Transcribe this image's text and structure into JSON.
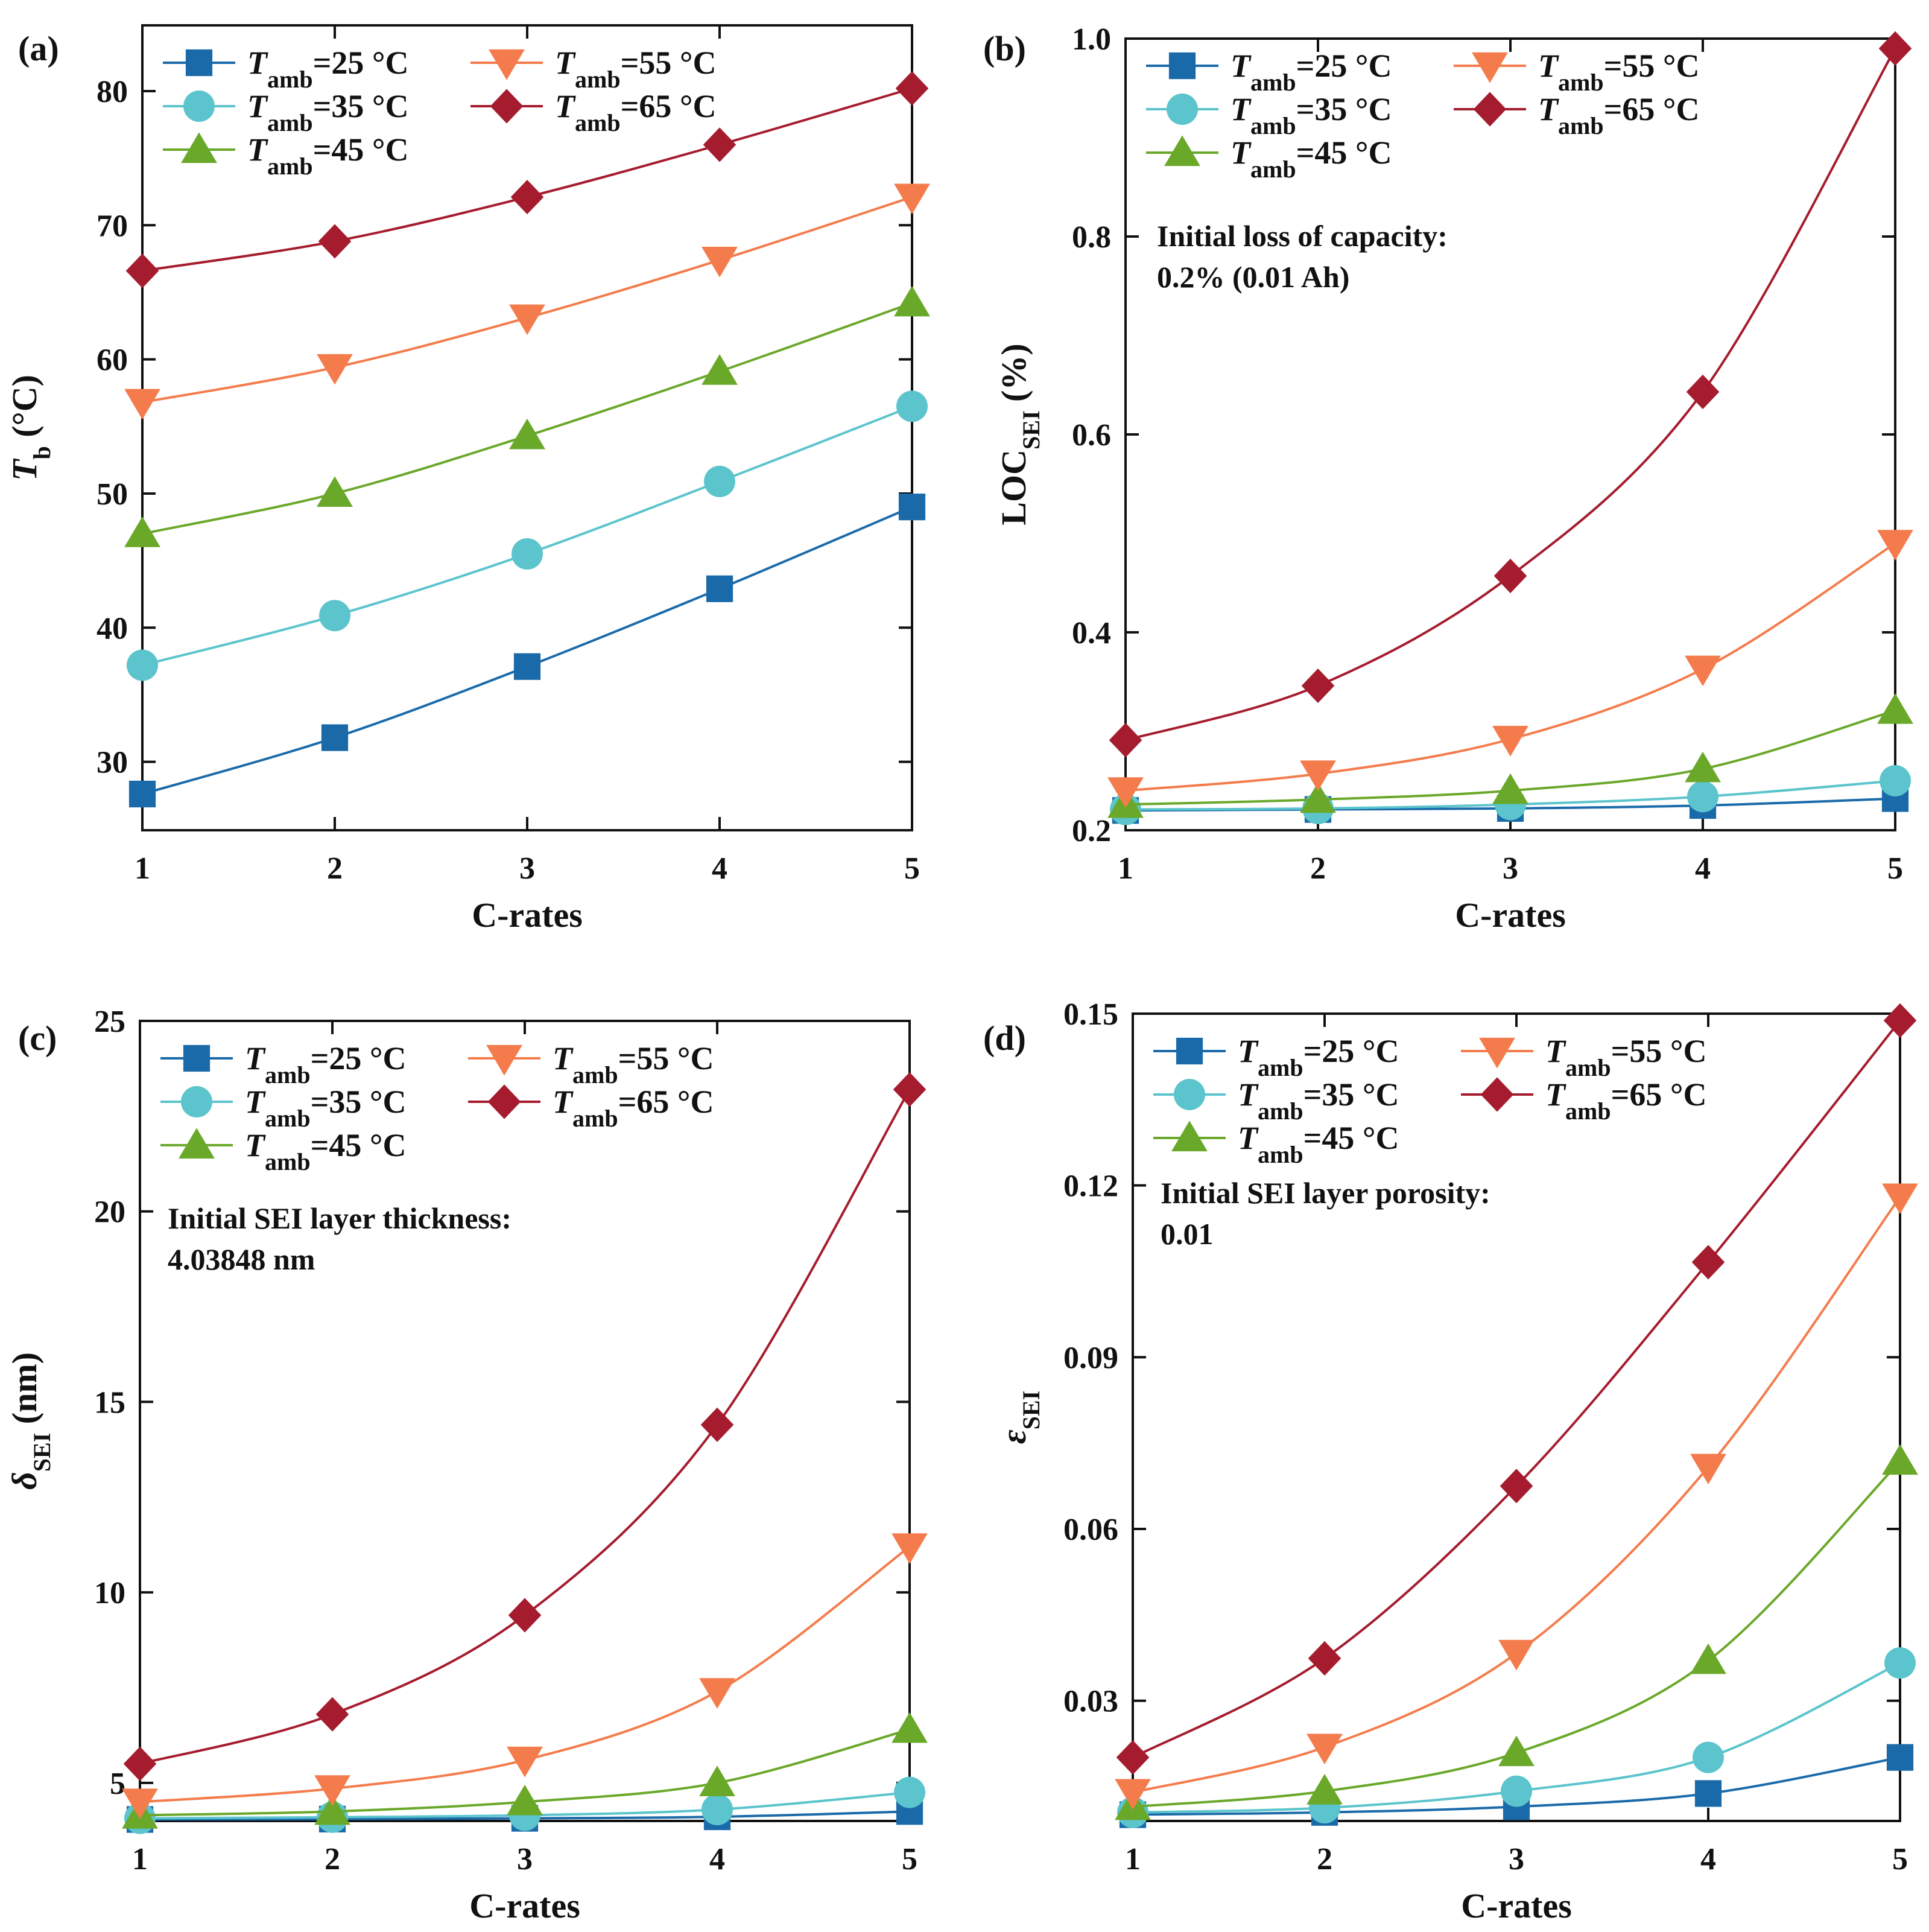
{
  "colors": {
    "25": "#1a6aaa",
    "35": "#5bc4cc",
    "45": "#6aa82a",
    "55": "#f47c4c",
    "65": "#a51c2e"
  },
  "legend": {
    "prefix": "T",
    "subscript": "amb",
    "entries": [
      {
        "key": "25",
        "suffix": "=25 °C",
        "marker": "square"
      },
      {
        "key": "55",
        "suffix": "=55 °C",
        "marker": "triangle-down"
      },
      {
        "key": "35",
        "suffix": "=35 °C",
        "marker": "circle"
      },
      {
        "key": "65",
        "suffix": "=65 °C",
        "marker": "diamond"
      },
      {
        "key": "45",
        "suffix": "=45 °C",
        "marker": "triangle-up"
      }
    ]
  },
  "chart_data": [
    {
      "panel": "(a)",
      "type": "line",
      "xlabel": "C-rates",
      "ylabel": {
        "main": "T",
        "sub": "b",
        "rest": " (°C)"
      },
      "x": [
        1,
        2,
        3,
        4,
        5
      ],
      "xlim": [
        1,
        5
      ],
      "ylim": [
        24.9,
        84.9
      ],
      "yticks": [
        30,
        40,
        50,
        60,
        70,
        80
      ],
      "ytick_labels": [
        "30",
        "40",
        "50",
        "60",
        "70",
        "80"
      ],
      "note": [],
      "series": [
        {
          "name": "Tamb=25 °C",
          "key": "25",
          "values": [
            27.6,
            31.8,
            37.1,
            42.9,
            49.0
          ]
        },
        {
          "name": "Tamb=35 °C",
          "key": "35",
          "values": [
            37.2,
            40.9,
            45.5,
            50.9,
            56.5
          ]
        },
        {
          "name": "Tamb=45 °C",
          "key": "45",
          "values": [
            47.0,
            50.0,
            54.3,
            59.1,
            64.2
          ]
        },
        {
          "name": "Tamb=55 °C",
          "key": "55",
          "values": [
            56.8,
            59.4,
            63.1,
            67.4,
            72.1
          ]
        },
        {
          "name": "Tamb=65 °C",
          "key": "65",
          "values": [
            66.6,
            68.8,
            72.1,
            76.0,
            80.2
          ]
        }
      ]
    },
    {
      "panel": "(b)",
      "type": "line",
      "xlabel": "C-rates",
      "ylabel": {
        "main": "LOC",
        "sub": "SEI",
        "rest": " (%)"
      },
      "x": [
        1,
        2,
        3,
        4,
        5
      ],
      "xlim": [
        1,
        5
      ],
      "ylim": [
        0.2,
        1.0
      ],
      "yticks": [
        0.2,
        0.4,
        0.6,
        0.8,
        1.0
      ],
      "ytick_labels": [
        "0.2",
        "0.4",
        "0.6",
        "0.8",
        "1.0"
      ],
      "note": [
        "Initial loss of capacity:",
        "0.2% (0.01 Ah)"
      ],
      "series": [
        {
          "name": "Tamb=25 °C",
          "key": "25",
          "values": [
            0.22,
            0.221,
            0.222,
            0.225,
            0.232
          ]
        },
        {
          "name": "Tamb=35 °C",
          "key": "35",
          "values": [
            0.221,
            0.222,
            0.226,
            0.234,
            0.25
          ]
        },
        {
          "name": "Tamb=45 °C",
          "key": "45",
          "values": [
            0.226,
            0.231,
            0.24,
            0.262,
            0.321
          ]
        },
        {
          "name": "Tamb=55 °C",
          "key": "55",
          "values": [
            0.24,
            0.257,
            0.292,
            0.363,
            0.49
          ]
        },
        {
          "name": "Tamb=65 °C",
          "key": "65",
          "values": [
            0.291,
            0.346,
            0.457,
            0.643,
            0.99
          ]
        }
      ]
    },
    {
      "panel": "(c)",
      "type": "line",
      "xlabel": "C-rates",
      "ylabel": {
        "main": "δ",
        "sub": "SEI",
        "rest": " (nm)"
      },
      "x": [
        1,
        2,
        3,
        4,
        5
      ],
      "xlim": [
        1,
        5
      ],
      "ylim": [
        4.0,
        25.0
      ],
      "yticks": [
        5,
        10,
        15,
        20,
        25
      ],
      "ytick_labels": [
        "5",
        "10",
        "15",
        "20",
        "25"
      ],
      "note": [
        "Initial SEI layer thickness:",
        "4.03848 nm"
      ],
      "series": [
        {
          "name": "Tamb=25 °C",
          "key": "25",
          "values": [
            4.04,
            4.05,
            4.07,
            4.11,
            4.25
          ]
        },
        {
          "name": "Tamb=35 °C",
          "key": "35",
          "values": [
            4.07,
            4.1,
            4.15,
            4.3,
            4.75
          ]
        },
        {
          "name": "Tamb=45 °C",
          "key": "45",
          "values": [
            4.15,
            4.25,
            4.5,
            5.0,
            6.4
          ]
        },
        {
          "name": "Tamb=55 °C",
          "key": "55",
          "values": [
            4.5,
            4.85,
            5.6,
            7.4,
            11.2
          ]
        },
        {
          "name": "Tamb=65 °C",
          "key": "65",
          "values": [
            5.5,
            6.8,
            9.4,
            14.4,
            23.2
          ]
        }
      ]
    },
    {
      "panel": "(d)",
      "type": "line",
      "xlabel": "C-rates",
      "ylabel": {
        "main": "ε",
        "sub": "SEI",
        "rest": ""
      },
      "x": [
        1,
        2,
        3,
        4,
        5
      ],
      "xlim": [
        1,
        5
      ],
      "ylim": [
        0.009,
        0.15
      ],
      "yticks": [
        0.03,
        0.06,
        0.09,
        0.12,
        0.15
      ],
      "ytick_labels": [
        "0.03",
        "0.06",
        "0.09",
        "0.12",
        "0.15"
      ],
      "note": [
        "Initial SEI layer porosity:",
        "0.01"
      ],
      "series": [
        {
          "name": "Tamb=25 °C",
          "key": "25",
          "values": [
            0.0101,
            0.0105,
            0.0115,
            0.0138,
            0.0201
          ]
        },
        {
          "name": "Tamb=35 °C",
          "key": "35",
          "values": [
            0.0105,
            0.0113,
            0.0142,
            0.0201,
            0.0366
          ]
        },
        {
          "name": "Tamb=45 °C",
          "key": "45",
          "values": [
            0.0115,
            0.0142,
            0.0209,
            0.037,
            0.0718
          ]
        },
        {
          "name": "Tamb=55 °C",
          "key": "55",
          "values": [
            0.014,
            0.0219,
            0.0383,
            0.0708,
            0.118
          ]
        },
        {
          "name": "Tamb=65 °C",
          "key": "65",
          "values": [
            0.0201,
            0.0374,
            0.0675,
            0.1066,
            0.1488
          ]
        }
      ]
    }
  ]
}
